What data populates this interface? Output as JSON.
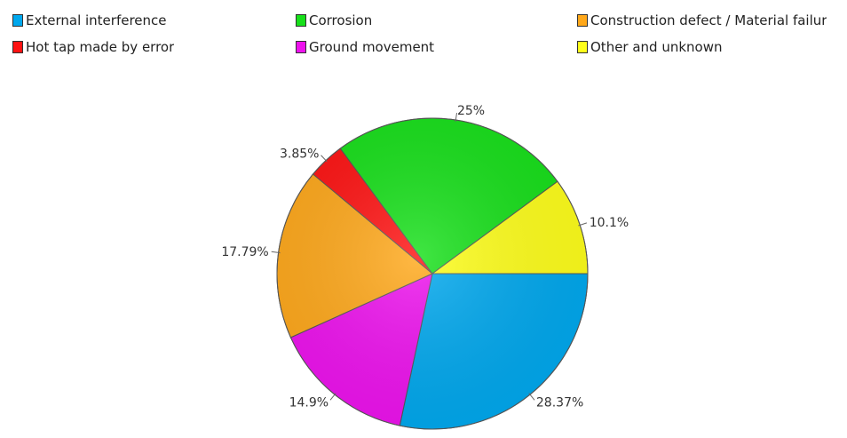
{
  "legend": [
    {
      "label": "External interference",
      "color": "#00a8ee"
    },
    {
      "label": "Corrosion",
      "color": "#17e01a"
    },
    {
      "label": "Construction defect / Material failur",
      "color": "#ffa81a"
    },
    {
      "label": "Hot tap made by error",
      "color": "#ff1212"
    },
    {
      "label": "Ground movement",
      "color": "#ee12ee"
    },
    {
      "label": "Other and unknown",
      "color": "#ffff1a"
    }
  ],
  "chart_data": {
    "type": "pie",
    "title": "",
    "legend_position": "top",
    "slices": [
      {
        "name": "External interference",
        "value": 28.37,
        "label": "28.37%",
        "color": "#00a8ee"
      },
      {
        "name": "Ground movement",
        "value": 14.9,
        "label": "14.9%",
        "color": "#ee12ee"
      },
      {
        "name": "Construction defect / Material failur",
        "value": 17.79,
        "label": "17.79%",
        "color": "#ffa81a"
      },
      {
        "name": "Hot tap made by error",
        "value": 3.85,
        "label": "3.85%",
        "color": "#ff1212"
      },
      {
        "name": "Corrosion",
        "value": 25,
        "label": "25%",
        "color": "#17e01a"
      },
      {
        "name": "Other and unknown",
        "value": 10.1,
        "label": "10.1%",
        "color": "#ffff1a"
      }
    ]
  }
}
